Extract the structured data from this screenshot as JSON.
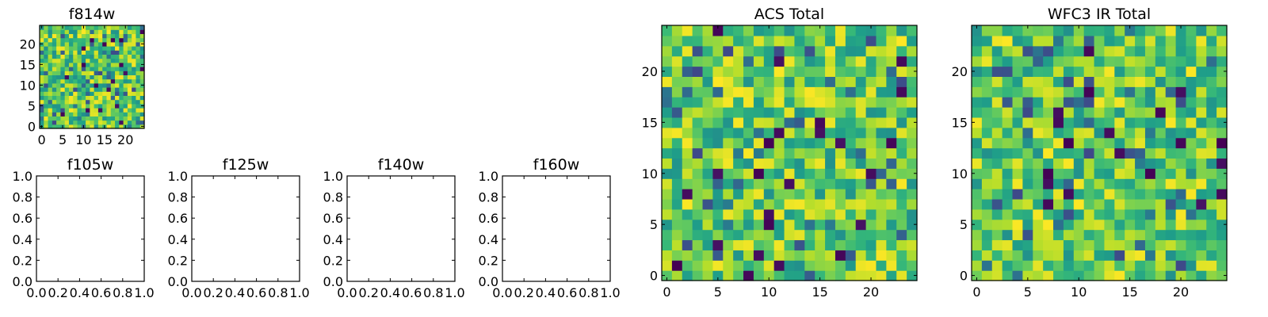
{
  "chart_data": [
    {
      "type": "heatmap",
      "title": "f814w",
      "grid_size": [
        25,
        25
      ],
      "xlim": [
        -0.5,
        24.5
      ],
      "ylim": [
        -0.5,
        24.5
      ],
      "xticks": [
        0,
        5,
        10,
        15,
        20
      ],
      "yticks": [
        0,
        5,
        10,
        15,
        20
      ],
      "colormap": "viridis",
      "values_seed": 814,
      "grid": false
    },
    {
      "type": "empty",
      "title": "f105w",
      "xlim": [
        0,
        1
      ],
      "ylim": [
        0,
        1
      ],
      "xticks": [
        "0.0",
        "0.2",
        "0.4",
        "0.6",
        "0.8",
        "1.0"
      ],
      "yticks": [
        "0.0",
        "0.2",
        "0.4",
        "0.6",
        "0.8",
        "1.0"
      ],
      "grid": false
    },
    {
      "type": "empty",
      "title": "f125w",
      "xlim": [
        0,
        1
      ],
      "ylim": [
        0,
        1
      ],
      "xticks": [
        "0.0",
        "0.2",
        "0.4",
        "0.6",
        "0.8",
        "1.0"
      ],
      "yticks": [
        "0.0",
        "0.2",
        "0.4",
        "0.6",
        "0.8",
        "1.0"
      ],
      "grid": false
    },
    {
      "type": "empty",
      "title": "f140w",
      "xlim": [
        0,
        1
      ],
      "ylim": [
        0,
        1
      ],
      "xticks": [
        "0.0",
        "0.2",
        "0.4",
        "0.6",
        "0.8",
        "1.0"
      ],
      "yticks": [
        "0.0",
        "0.2",
        "0.4",
        "0.6",
        "0.8",
        "1.0"
      ],
      "grid": false
    },
    {
      "type": "empty",
      "title": "f160w",
      "xlim": [
        0,
        1
      ],
      "ylim": [
        0,
        1
      ],
      "xticks": [
        "0.0",
        "0.2",
        "0.4",
        "0.6",
        "0.8",
        "1.0"
      ],
      "yticks": [
        "0.0",
        "0.2",
        "0.4",
        "0.6",
        "0.8",
        "1.0"
      ],
      "grid": false
    },
    {
      "type": "heatmap",
      "title": "ACS Total",
      "grid_size": [
        25,
        25
      ],
      "xlim": [
        -0.5,
        24.5
      ],
      "ylim": [
        -0.5,
        24.5
      ],
      "xticks": [
        0,
        5,
        10,
        15,
        20
      ],
      "yticks": [
        0,
        5,
        10,
        15,
        20
      ],
      "colormap": "viridis",
      "values_seed": 2,
      "grid": false
    },
    {
      "type": "heatmap",
      "title": "WFC3 IR Total",
      "grid_size": [
        25,
        25
      ],
      "xlim": [
        -0.5,
        24.5
      ],
      "ylim": [
        -0.5,
        24.5
      ],
      "xticks": [
        0,
        5,
        10,
        15,
        20
      ],
      "yticks": [
        0,
        5,
        10,
        15,
        20
      ],
      "colormap": "viridis",
      "values_seed": 3,
      "grid": false
    }
  ]
}
